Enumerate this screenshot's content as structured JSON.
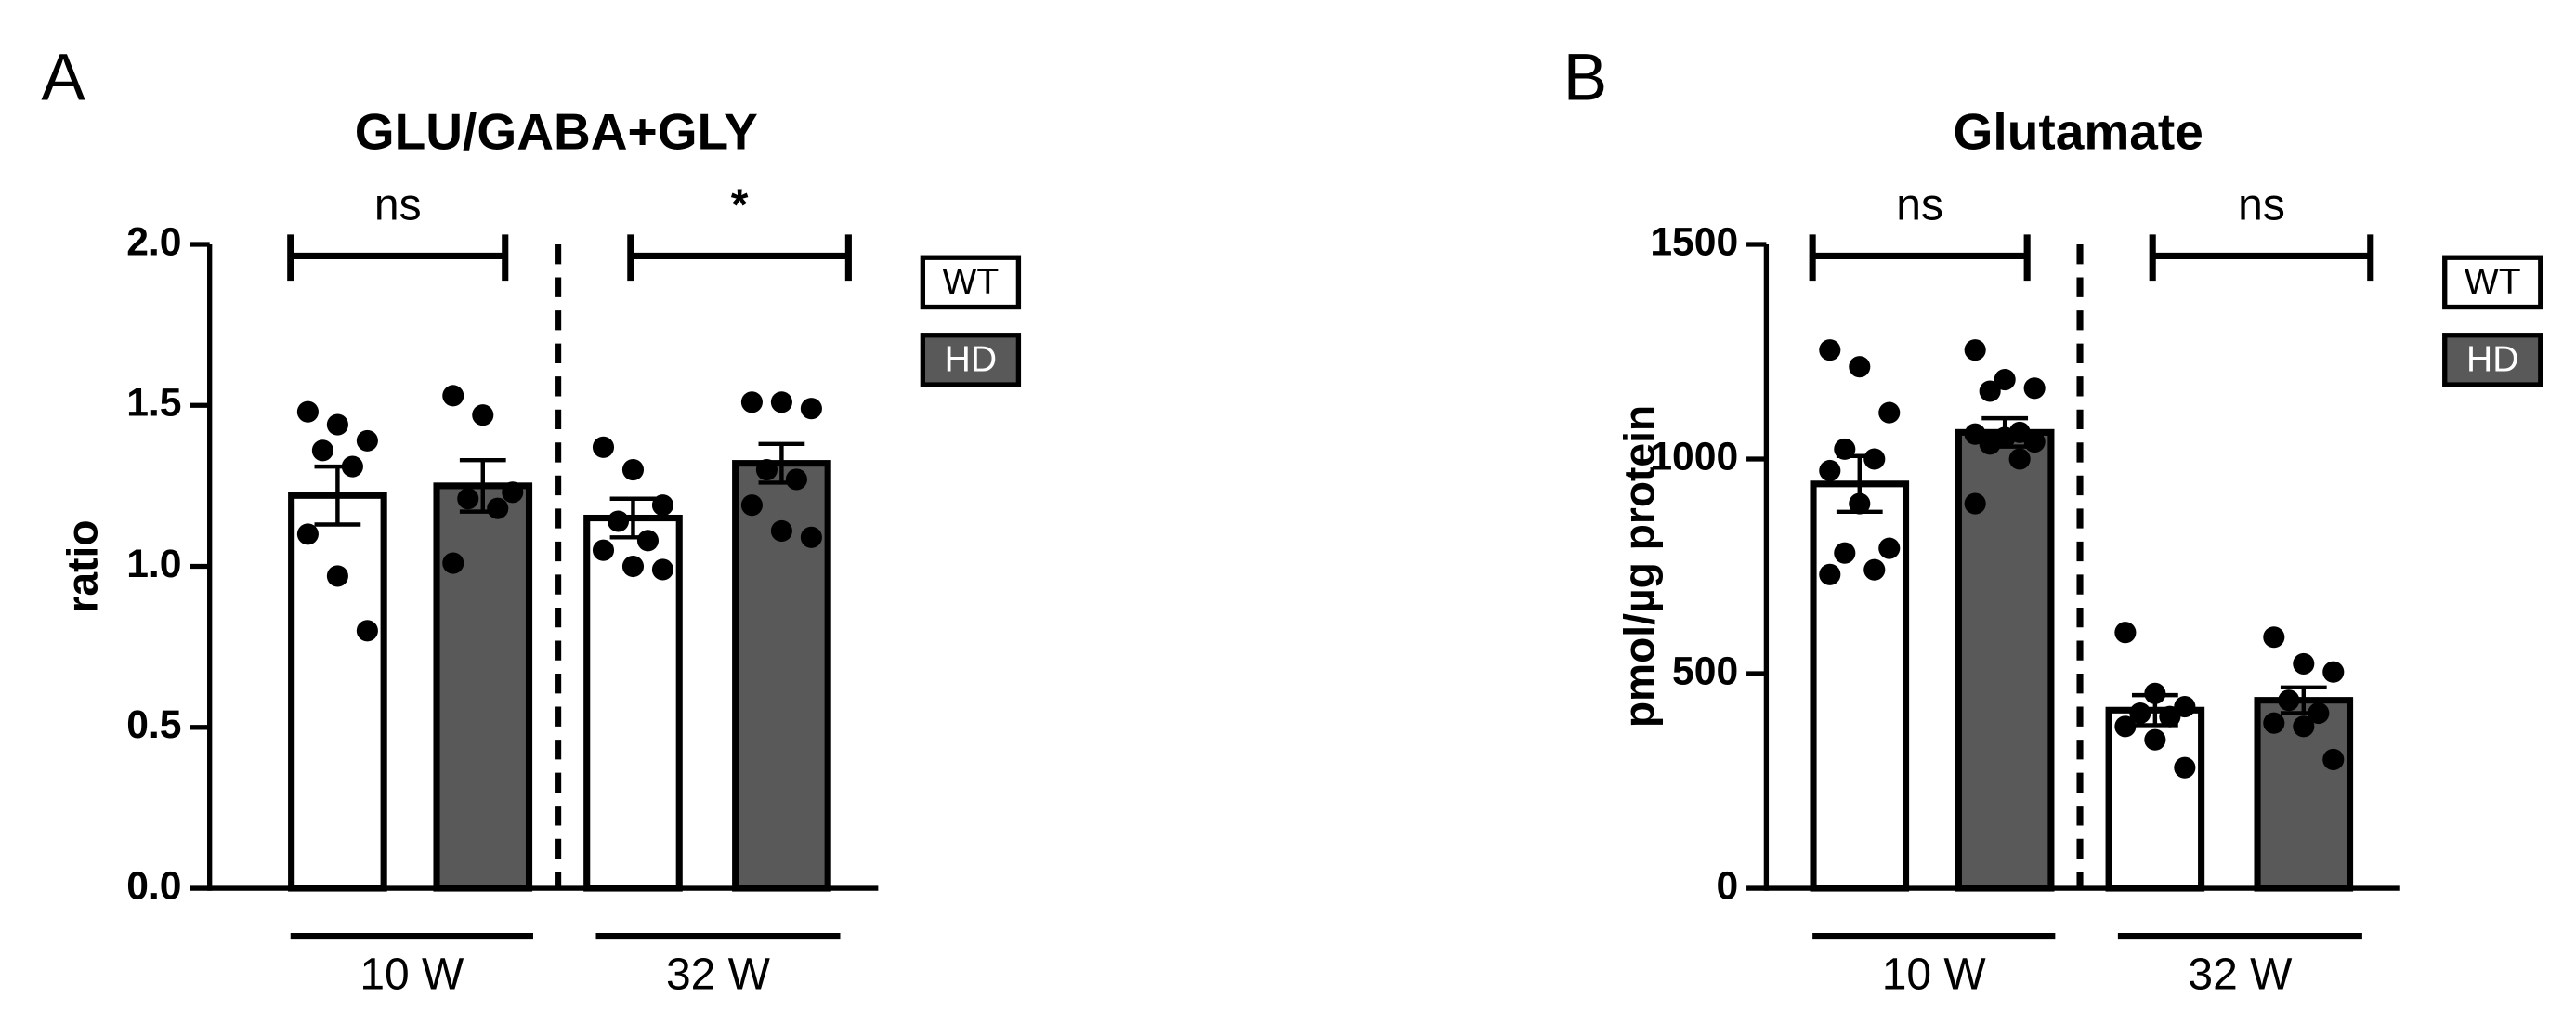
{
  "chart_data": [
    {
      "type": "bar",
      "panel": "A",
      "title": "GLU/GABA+GLY",
      "ylabel": "ratio",
      "groups": [
        "10 W",
        "32 W"
      ],
      "series": [
        {
          "name": "WT",
          "color": "#ffffff",
          "values": [
            1.22,
            1.15
          ],
          "errors": [
            0.09,
            0.06
          ],
          "points": [
            [
              1.48,
              1.44,
              1.39,
              1.36,
              1.31,
              1.1,
              0.97,
              0.8
            ],
            [
              1.37,
              1.3,
              1.19,
              1.14,
              1.08,
              1.05,
              1.0,
              0.99
            ]
          ]
        },
        {
          "name": "HD",
          "color": "#595959",
          "values": [
            1.25,
            1.32
          ],
          "errors": [
            0.08,
            0.06
          ],
          "points": [
            [
              1.53,
              1.47,
              1.23,
              1.21,
              1.18,
              1.01
            ],
            [
              1.51,
              1.51,
              1.49,
              1.3,
              1.27,
              1.19,
              1.11,
              1.09
            ]
          ]
        }
      ],
      "significance": [
        "ns",
        "*"
      ],
      "ylim": [
        0,
        2
      ],
      "yticks": [
        {
          "value": 0,
          "label": "0.0"
        },
        {
          "value": 0.5,
          "label": "0.5"
        },
        {
          "value": 1,
          "label": "1.0"
        },
        {
          "value": 1.5,
          "label": "1.5"
        },
        {
          "value": 2,
          "label": "2.0"
        }
      ]
    },
    {
      "type": "bar",
      "panel": "B",
      "title": "Glutamate",
      "ylabel": "pmol/µg protein",
      "groups": [
        "10 W",
        "32 W"
      ],
      "series": [
        {
          "name": "WT",
          "color": "#ffffff",
          "values": [
            942,
            415
          ],
          "errors": [
            65,
            35
          ],
          "points": [
            [
              1254,
              1215,
              1108,
              1023,
              1000,
              973,
              896,
              792,
              781,
              742,
              731
            ],
            [
              596,
              454,
              423,
              408,
              400,
              377,
              346,
              281
            ]
          ]
        },
        {
          "name": "HD",
          "color": "#595959",
          "values": [
            1062,
            438
          ],
          "errors": [
            33,
            30
          ],
          "points": [
            [
              1254,
              1185,
              1165,
              1158,
              1062,
              1058,
              1050,
              1040,
              1035,
              1000,
              896
            ],
            [
              585,
              523,
              504,
              438,
              408,
              385,
              377,
              300
            ]
          ]
        }
      ],
      "significance": [
        "ns",
        "ns"
      ],
      "ylim": [
        0,
        1500
      ],
      "yticks": [
        0,
        500,
        1000,
        1500
      ]
    }
  ]
}
